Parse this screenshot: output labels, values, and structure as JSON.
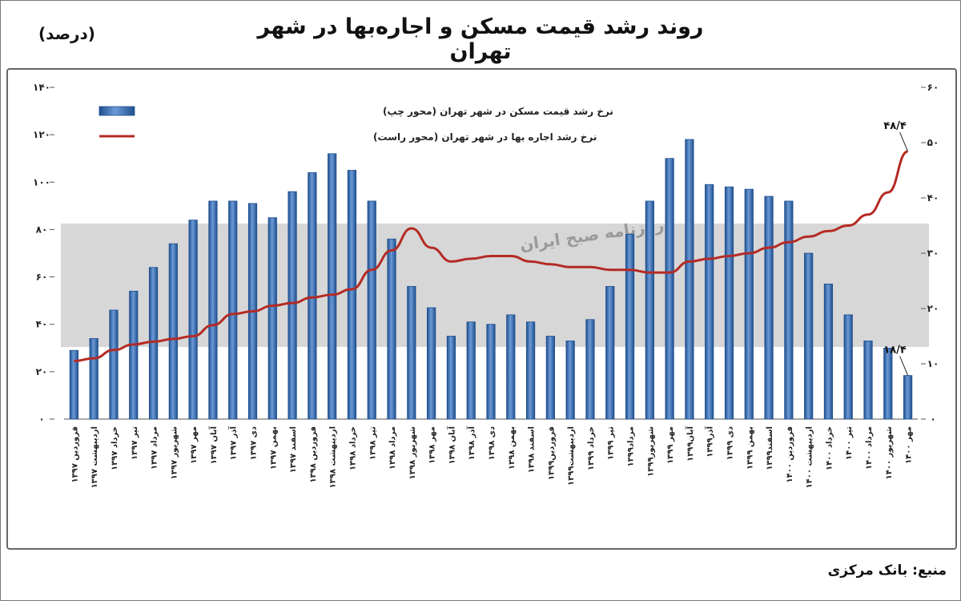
{
  "page": {
    "title": "روند رشد قیمت مسکن و اجاره‌بها در شهر تهران",
    "unit": "(درصد)",
    "source": "منبع: بانک مرکزی",
    "watermark": "روزنامه صبح ایران"
  },
  "colors": {
    "bar": "#3a6fb8",
    "bar_edge": "#1f4f8f",
    "line": "#b52a24",
    "band": "#d7d7d7"
  },
  "chart_data": {
    "type": "bar",
    "left_axis": {
      "ylim": [
        0,
        140
      ],
      "ticks": [
        "۰",
        "۲۰",
        "۴۰",
        "۶۰",
        "۸۰",
        "۱۰۰",
        "۱۲۰",
        "۱۴۰"
      ]
    },
    "right_axis": {
      "ylim": [
        0,
        60
      ],
      "ticks": [
        "۰",
        "۱۰",
        "۲۰",
        "۳۰",
        "۴۰",
        "۵۰",
        "۶۰"
      ]
    },
    "legend": [
      "نرخ رشد قیمت مسکن در شهر تهران (محور چپ)",
      "نرخ رشد اجاره بها در شهر تهران (محور راست)"
    ],
    "categories": [
      "فروردین ۱۳۹۷",
      "اردیبهشت ۱۳۹۷",
      "خرداد ۱۳۹۷",
      "تیر ۱۳۹۷",
      "مرداد ۱۳۹۷",
      "شهریور ۱۳۹۷",
      "مهر ۱۳۹۷",
      "آبان ۱۳۹۷",
      "آذر ۱۳۹۷",
      "دی ۱۳۹۷",
      "بهمن ۱۳۹۷",
      "اسفند ۱۳۹۷",
      "فروردین ۱۳۹۸",
      "اردیبهشت ۱۳۹۸",
      "خرداد ۱۳۹۸",
      "تیر ۱۳۹۸",
      "مرداد ۱۳۹۸",
      "شهریور ۱۳۹۸",
      "مهر ۱۳۹۸",
      "آبان ۱۳۹۸",
      "آذر ۱۳۹۸",
      "دی ۱۳۹۸",
      "بهمن ۱۳۹۸",
      "اسفند ۱۳۹۸",
      "فروردین۱۳۹۹",
      "اردیبهشت۱۳۹۹",
      "خرداد ۱۳۹۹",
      "تیر ۱۳۹۹",
      "مرداد۱۳۹۹",
      "شهریور۱۳۹۹",
      "مهر ۱۳۹۹",
      "آبان۱۳۹۹",
      "آذر۱۳۹۹",
      "دی ۱۳۹۹",
      "بهمن ۱۳۹۹",
      "اسفند۱۳۹۹",
      "فروردین ۱۴۰۰",
      "اردیبهشت ۱۴۰۰",
      "خرداد ۱۴۰۰",
      "تیر ۱۴۰۰",
      "مرداد ۱۴۰۰",
      "شهریور ۱۴۰۰",
      "مهر ۱۴۰۰"
    ],
    "series": [
      {
        "name": "نرخ رشد قیمت مسکن در شهر تهران (محور چپ)",
        "axis": "left",
        "values": [
          29,
          34,
          46,
          54,
          64,
          74,
          84,
          92,
          92,
          91,
          85,
          96,
          104,
          112,
          105,
          92,
          76,
          56,
          47,
          35,
          41,
          40,
          44,
          41,
          35,
          33,
          42,
          56,
          78,
          92,
          110,
          118,
          99,
          98,
          97,
          94,
          92,
          70,
          57,
          44,
          33,
          30,
          18.4
        ]
      },
      {
        "name": "نرخ رشد اجاره بها در شهر تهران (محور راست)",
        "axis": "right",
        "values": [
          10.5,
          11,
          12.5,
          13.5,
          14,
          14.5,
          15,
          17,
          19,
          19.5,
          20.5,
          21,
          22,
          22.5,
          23.5,
          27,
          30.5,
          34.5,
          31,
          28.5,
          29,
          29.5,
          29.5,
          28.5,
          28,
          27.5,
          27.5,
          27,
          27,
          26.5,
          26.5,
          28.5,
          29,
          29.5,
          30,
          31,
          32,
          33,
          34,
          35,
          37,
          41,
          48.4
        ]
      }
    ],
    "annotations": [
      {
        "text": "۴۸/۴",
        "series": 1,
        "index": 42
      },
      {
        "text": "۱۸/۴",
        "series": 0,
        "index": 42
      }
    ]
  }
}
